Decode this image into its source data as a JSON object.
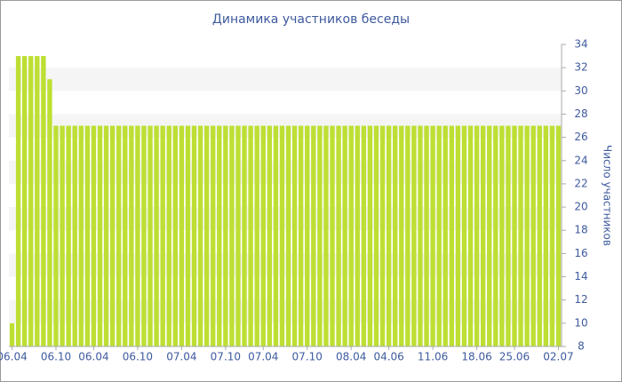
{
  "chart_data": {
    "type": "bar",
    "title": "Динамика участников беседы",
    "y_label": "Число участников",
    "categories": [
      "06.04",
      null,
      null,
      null,
      null,
      null,
      null,
      "06.10",
      null,
      null,
      null,
      null,
      null,
      "06.04",
      null,
      null,
      null,
      null,
      null,
      null,
      "06.10",
      null,
      null,
      null,
      null,
      null,
      null,
      "07.04",
      null,
      null,
      null,
      null,
      null,
      null,
      "07.10",
      null,
      null,
      null,
      null,
      null,
      "07.04",
      null,
      null,
      null,
      null,
      null,
      null,
      "07.10",
      null,
      null,
      null,
      null,
      null,
      null,
      "08.04",
      null,
      null,
      null,
      null,
      null,
      "04.06",
      null,
      null,
      null,
      null,
      null,
      null,
      "11.06",
      null,
      null,
      null,
      null,
      null,
      null,
      "18.06",
      null,
      null,
      null,
      null,
      null,
      "25.06",
      null,
      null,
      null,
      null,
      null,
      null,
      "02.07"
    ],
    "values": [
      10,
      33,
      33,
      33,
      33,
      33,
      31,
      27,
      27,
      27,
      27,
      27,
      27,
      27,
      27,
      27,
      27,
      27,
      27,
      27,
      27,
      27,
      27,
      27,
      27,
      27,
      27,
      27,
      27,
      27,
      27,
      27,
      27,
      27,
      27,
      27,
      27,
      27,
      27,
      27,
      27,
      27,
      27,
      27,
      27,
      27,
      27,
      27,
      27,
      27,
      27,
      27,
      27,
      27,
      27,
      27,
      27,
      27,
      27,
      27,
      27,
      27,
      27,
      27,
      27,
      27,
      27,
      27,
      27,
      27,
      27,
      27,
      27,
      27,
      27,
      27,
      27,
      27,
      27,
      27,
      27,
      27,
      27,
      27,
      27,
      27,
      27,
      27
    ],
    "color": "#bddf33",
    "ylim": [
      8,
      34
    ],
    "yticks": [
      8,
      10,
      12,
      14,
      16,
      18,
      20,
      22,
      24,
      26,
      28,
      30,
      32,
      34
    ],
    "grid": "bands",
    "y_axis_side": "right"
  }
}
